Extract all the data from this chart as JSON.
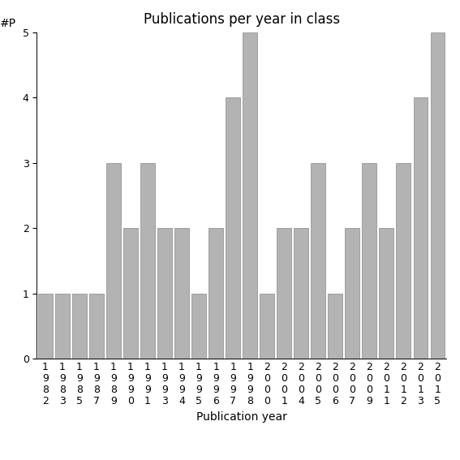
{
  "title": "Publications per year in class",
  "xlabel": "Publication year",
  "ylabel": "#P",
  "categories": [
    "1982",
    "1983",
    "1985",
    "1987",
    "1989",
    "1990",
    "1991",
    "1993",
    "1994",
    "1995",
    "1996",
    "1997",
    "1998",
    "2000",
    "2001",
    "2004",
    "2005",
    "2006",
    "2007",
    "2009",
    "2011",
    "2012",
    "2013",
    "2015"
  ],
  "values": [
    1,
    1,
    1,
    1,
    3,
    2,
    3,
    2,
    2,
    1,
    2,
    4,
    5,
    1,
    2,
    2,
    3,
    1,
    2,
    3,
    2,
    3,
    4,
    5
  ],
  "bar_color": "#b3b3b3",
  "bar_edge_color": "#888888",
  "ylim": [
    0,
    5
  ],
  "yticks": [
    0,
    1,
    2,
    3,
    4,
    5
  ],
  "title_fontsize": 12,
  "label_fontsize": 10,
  "tick_fontsize": 9,
  "background_color": "#ffffff"
}
